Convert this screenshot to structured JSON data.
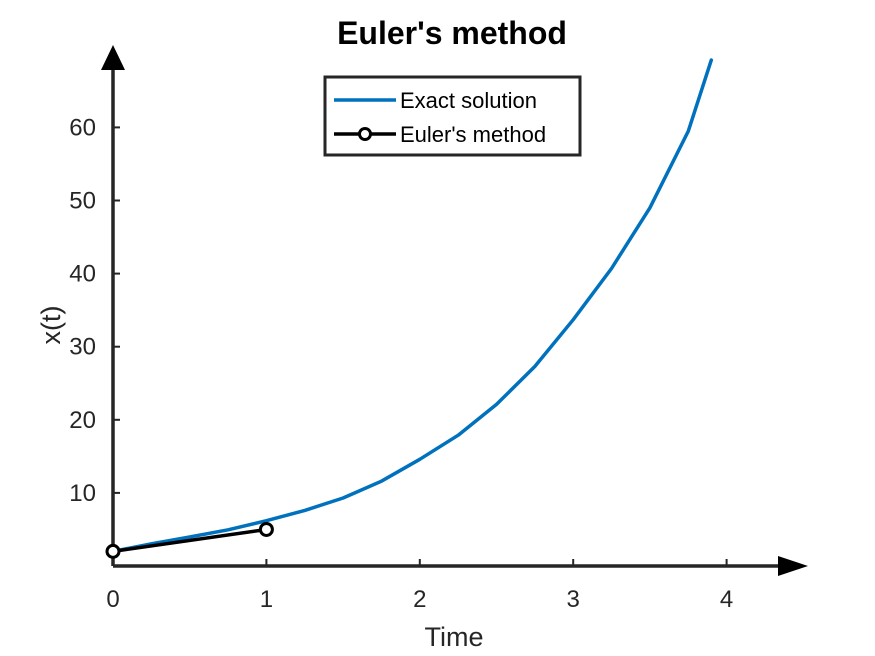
{
  "chart_data": {
    "type": "line",
    "title": "Euler's method",
    "xlabel": "Time",
    "ylabel": "x(t)",
    "xlim": [
      0,
      4.5
    ],
    "ylim": [
      0,
      69
    ],
    "xticks": [
      0,
      1,
      2,
      3,
      4
    ],
    "yticks": [
      10,
      20,
      30,
      40,
      50,
      60
    ],
    "grid": false,
    "legend_position": "top-center",
    "series": [
      {
        "name": "Exact solution",
        "color": "#0072BD",
        "x": [
          0,
          0.25,
          0.5,
          0.75,
          1,
          1.25,
          1.5,
          1.75,
          2,
          2.25,
          2.5,
          2.75,
          3,
          3.25,
          3.5,
          3.75,
          3.9
        ],
        "y": [
          2,
          3.02,
          3.97,
          4.95,
          6.2,
          7.6,
          9.3,
          11.6,
          14.6,
          17.9,
          22.1,
          27.3,
          33.7,
          40.7,
          49.0,
          59.5,
          69.2
        ]
      },
      {
        "name": "Euler's method",
        "color": "#000000",
        "marker": "circle",
        "x": [
          0,
          1
        ],
        "y": [
          2,
          5
        ]
      }
    ]
  }
}
